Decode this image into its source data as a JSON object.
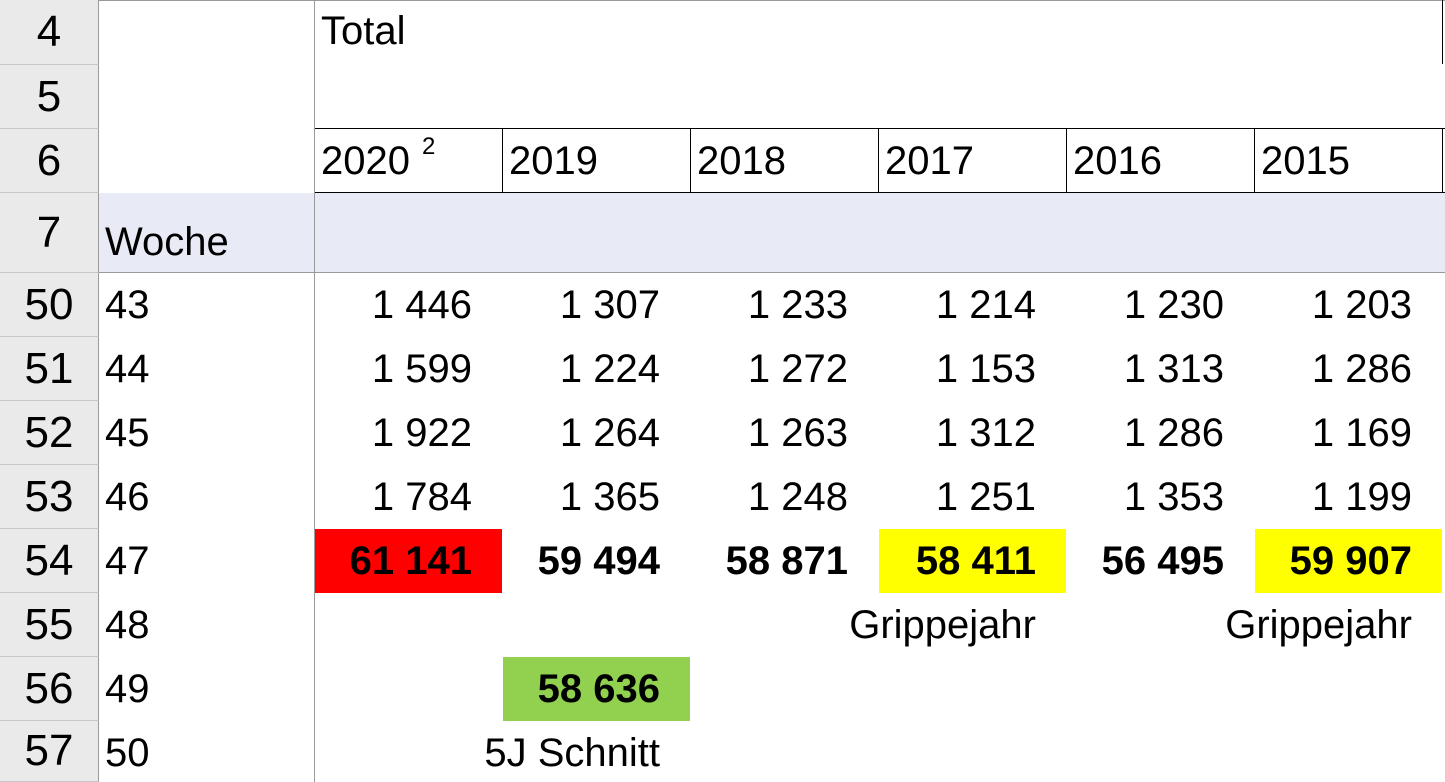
{
  "row_headers": [
    "4",
    "5",
    "6",
    "7",
    "50",
    "51",
    "52",
    "53",
    "54",
    "55",
    "56",
    "57"
  ],
  "header": {
    "title": "Total",
    "years": [
      "2020",
      "2019",
      "2018",
      "2017",
      "2016",
      "2015"
    ],
    "year_2020_superscript": "2",
    "week_label": "Woche"
  },
  "rows": [
    {
      "week": "43",
      "values": [
        "1 446",
        "1 307",
        "1 233",
        "1 214",
        "1 230",
        "1 203"
      ]
    },
    {
      "week": "44",
      "values": [
        "1 599",
        "1 224",
        "1 272",
        "1 153",
        "1 313",
        "1 286"
      ]
    },
    {
      "week": "45",
      "values": [
        "1 922",
        "1 264",
        "1 263",
        "1 312",
        "1 286",
        "1 169"
      ]
    },
    {
      "week": "46",
      "values": [
        "1 784",
        "1 365",
        "1 248",
        "1 251",
        "1 353",
        "1 199"
      ]
    },
    {
      "week": "47",
      "values": [
        "61 141",
        "59 494",
        "58 871",
        "58 411",
        "56 495",
        "59 907"
      ]
    },
    {
      "week": "48",
      "values": [
        "",
        "",
        "",
        "Grippejahr",
        "",
        "Grippejahr"
      ]
    },
    {
      "week": "49",
      "values": [
        "",
        "58 636",
        "",
        "",
        "",
        ""
      ]
    },
    {
      "week": "50",
      "values": [
        "",
        "5J Schnitt",
        "",
        "",
        "",
        ""
      ]
    }
  ],
  "highlight_colors": {
    "red": "#ff0000",
    "yellow": "#ffff00",
    "green": "#92d050",
    "header_band": "#e8eaf6"
  }
}
